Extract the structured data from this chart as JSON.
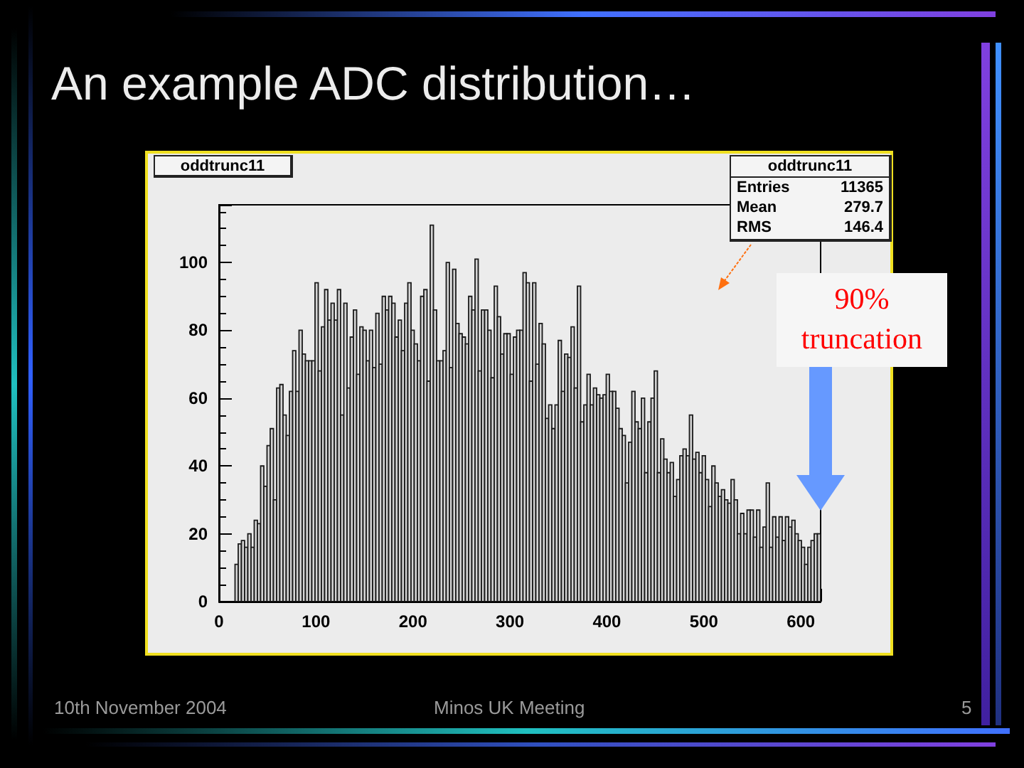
{
  "chart_data": {
    "type": "histogram",
    "title": "An example ADC distribution…",
    "bins": [
      16.5,
      19.8,
      23.1,
      26.4,
      29.7,
      33,
      36.3,
      39.6,
      42.9,
      46.2,
      49.5,
      52.8,
      56.1,
      59.4,
      62.7,
      66,
      69.3,
      72.6,
      75.9,
      79.2,
      82.5,
      85.8,
      89.1,
      92.4,
      95.7,
      99,
      102.3,
      105.6,
      108.9,
      112.2,
      115.5,
      118.8,
      122.1,
      125.4,
      128.7,
      132,
      135.3,
      138.6,
      141.9,
      145.2,
      148.5,
      151.8,
      155.1,
      158.4,
      161.7,
      165,
      168.3,
      171.6,
      174.9,
      178.2,
      181.5,
      184.8,
      188.1,
      191.4,
      194.7,
      198,
      201.3,
      204.6,
      207.9,
      211.2,
      214.5,
      217.8,
      221.1,
      224.4,
      227.7,
      231,
      234.3,
      237.6,
      240.9,
      244.2,
      247.5,
      250.8,
      254.1,
      257.4,
      260.7,
      264,
      267.3,
      270.6,
      273.9,
      277.2,
      280.5,
      283.8,
      287.1,
      290.4,
      293.7,
      297,
      300.3,
      303.6,
      306.9,
      310.2,
      313.5,
      316.8,
      320.1,
      323.4,
      326.7,
      330,
      333.3,
      336.6,
      339.9,
      343.2,
      346.5,
      349.8,
      353.1,
      356.4,
      359.7,
      363,
      366.3,
      369.6,
      372.9,
      376.2,
      379.5,
      382.8,
      386.1,
      389.4,
      392.7,
      396,
      399.3,
      402.6,
      405.9,
      409.2,
      412.5,
      415.8,
      419.1,
      422.4,
      425.7,
      429,
      432.3,
      435.6,
      438.9,
      442.2,
      445.5,
      448.8,
      452.1,
      455.4,
      458.7,
      462,
      465.3,
      468.6,
      471.9,
      475.2,
      478.5,
      481.8,
      485.1,
      488.4,
      491.7,
      495,
      498.3,
      501.6,
      504.9,
      508.2,
      511.5,
      514.8,
      518.1,
      521.4,
      524.7,
      528,
      531.3,
      534.6,
      537.9,
      541.2,
      544.5,
      547.8,
      551.1,
      554.4,
      557.7,
      561,
      564.3,
      567.6,
      570.9,
      574.2,
      577.5,
      580.8,
      584.1,
      587.4,
      590.7,
      594,
      597.3,
      600.6,
      603.9,
      607.2,
      610.5,
      613.8,
      617.1,
      620.4
    ],
    "values": [
      11,
      17,
      18,
      16,
      20,
      16,
      24,
      23,
      40,
      34,
      46,
      51,
      30,
      63,
      64,
      55,
      49,
      62,
      74,
      62,
      80,
      73,
      71,
      71,
      71,
      94,
      68,
      81,
      92,
      83,
      88,
      83,
      92,
      55,
      88,
      63,
      78,
      86,
      67,
      81,
      80,
      71,
      80,
      69,
      85,
      70,
      90,
      86,
      90,
      88,
      78,
      83,
      74,
      88,
      94,
      80,
      76,
      71,
      90,
      92,
      65,
      111,
      86,
      71,
      71,
      74,
      100,
      69,
      98,
      82,
      79,
      78,
      76,
      90,
      86,
      101,
      68,
      86,
      86,
      80,
      66,
      93,
      84,
      73,
      79,
      79,
      67,
      78,
      80,
      80,
      97,
      94,
      65,
      94,
      70,
      82,
      76,
      54,
      58,
      51,
      58,
      77,
      62,
      73,
      72,
      81,
      63,
      93,
      53,
      58,
      67,
      58,
      63,
      61,
      60,
      61,
      67,
      62,
      62,
      57,
      51,
      49,
      35,
      47,
      62,
      53,
      51,
      60,
      38,
      53,
      60,
      68,
      38,
      48,
      42,
      38,
      41,
      31,
      36,
      43,
      45,
      43,
      55,
      42,
      44,
      38,
      43,
      36,
      28,
      40,
      35,
      31,
      33,
      30,
      29,
      36,
      30,
      20,
      26,
      20,
      27,
      27,
      19,
      27,
      16,
      22,
      35,
      16,
      25,
      19,
      25,
      18,
      25,
      22,
      24,
      20,
      18,
      16,
      11,
      16,
      18,
      20,
      20
    ],
    "color": "#1a1a1a",
    "xlim": [
      0,
      620.4
    ],
    "xticks": [
      0,
      100,
      200,
      300,
      400,
      500,
      600
    ],
    "ylim": [
      0,
      117
    ],
    "yticks": [
      0,
      20,
      40,
      60,
      80,
      100
    ],
    "annotations": [
      "oddtrunc11",
      "oddtrunc11",
      "Entries",
      "11365",
      "Mean",
      "279.7",
      "RMS",
      "146.4",
      "90% truncation",
      "10th November 2004",
      "Minos UK Meeting",
      "5"
    ]
  }
}
